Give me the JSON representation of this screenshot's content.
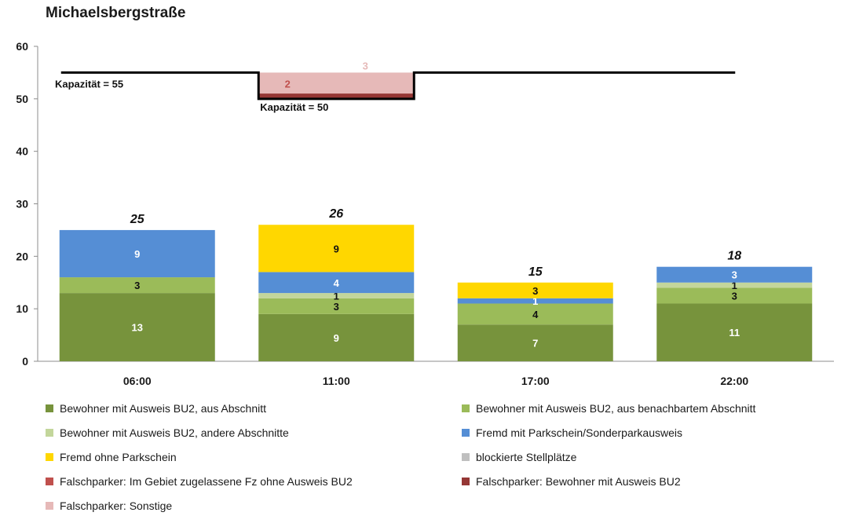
{
  "chart_data": {
    "type": "bar",
    "stacked": true,
    "title": "Michaelsbergstraße",
    "xlabel": "",
    "ylabel": "",
    "ylim": [
      0,
      60
    ],
    "yticks": [
      0,
      10,
      20,
      30,
      40,
      50,
      60
    ],
    "categories": [
      "06:00",
      "11:00",
      "17:00",
      "22:00"
    ],
    "totals": [
      25,
      26,
      15,
      18
    ],
    "series": [
      {
        "name": "Bewohner mit Ausweis BU2, aus Abschnitt",
        "color": "#77933c",
        "label_color": "#ffffff",
        "values": [
          13,
          9,
          7,
          11
        ]
      },
      {
        "name": "Bewohner mit Ausweis BU2, aus benachbartem Abschnitt",
        "color": "#9bbb59",
        "label_color": "#111111",
        "values": [
          3,
          3,
          4,
          3
        ]
      },
      {
        "name": "Bewohner mit Ausweis BU2, andere Abschnitte",
        "color": "#c3d69b",
        "label_color": "#111111",
        "values": [
          0,
          1,
          0,
          1
        ]
      },
      {
        "name": "Fremd mit Parkschein/Sonderparkausweis",
        "color": "#558ed5",
        "label_color": "#ffffff",
        "values": [
          9,
          4,
          1,
          3
        ]
      },
      {
        "name": "Fremd ohne Parkschein",
        "color": "#ffd700",
        "label_color": "#111111",
        "values": [
          0,
          9,
          3,
          0
        ]
      },
      {
        "name": "blockierte Stellplätze",
        "color": "#bfbfbf",
        "label_color": "#111111",
        "values": [
          0,
          0,
          0,
          0
        ]
      },
      {
        "name": "Falschparker: Im Gebiet zugelassene Fz ohne Ausweis BU2",
        "color": "#c0504d",
        "label_color": "#ffffff",
        "values": [
          0,
          0,
          0,
          0
        ]
      },
      {
        "name": "Falschparker: Bewohner mit Ausweis BU2",
        "color": "#953735",
        "label_color": "#ffffff",
        "values": [
          0,
          0,
          0,
          0
        ]
      },
      {
        "name": "Falschparker: Sonstige",
        "color": "#e6b9b8",
        "label_color": "#ffffff",
        "values": [
          0,
          0,
          0,
          0
        ]
      }
    ],
    "capacity": {
      "labels": [
        "Kapazität = 55",
        "Kapazität = 50"
      ],
      "main_value": 55,
      "reduced_value": 50,
      "reduced_at": "11:00",
      "reduced_bands": [
        {
          "series": "Falschparker: Bewohner mit Ausweis BU2",
          "value": 2,
          "color": "#953735",
          "label_color": "#c0504d"
        },
        {
          "series": "Falschparker: Sonstige",
          "value": 3,
          "color": "#e6b9b8",
          "label_color": "#e6b9b8"
        }
      ]
    },
    "legend_position": "bottom"
  }
}
